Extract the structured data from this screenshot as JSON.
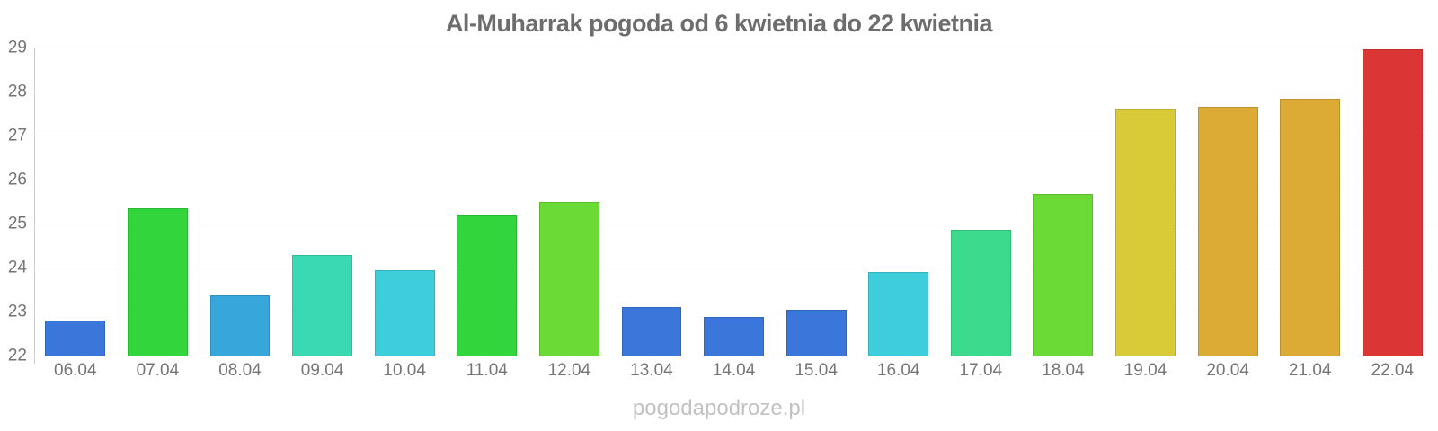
{
  "title": "Al-Muharrak pogoda od 6 kwietnia do 22 kwietnia",
  "watermark": "pogodapodroze.pl",
  "chart_data": {
    "type": "bar",
    "title": "Al-Muharrak pogoda od 6 kwietnia do 22 kwietnia",
    "categories": [
      "06.04",
      "07.04",
      "08.04",
      "09.04",
      "10.04",
      "11.04",
      "12.04",
      "13.04",
      "14.04",
      "15.04",
      "16.04",
      "17.04",
      "18.04",
      "19.04",
      "20.04",
      "21.04",
      "22.04"
    ],
    "values": [
      22.8,
      25.34,
      23.36,
      24.28,
      23.93,
      25.2,
      25.5,
      23.1,
      22.87,
      23.05,
      23.9,
      24.85,
      25.68,
      27.62,
      27.66,
      27.83,
      28.96
    ],
    "bar_colors": [
      "#3b76db",
      "#32d53b",
      "#36a6db",
      "#39dab3",
      "#3ecddb",
      "#32d53b",
      "#6bd936",
      "#3b76db",
      "#3b76db",
      "#3b76db",
      "#3ecddb",
      "#3cda8c",
      "#6bd936",
      "#d9ca38",
      "#dcab36",
      "#dcab36",
      "#db3535"
    ],
    "xlabel": "",
    "ylabel": "",
    "ylim": [
      22,
      29
    ],
    "yticks": [
      22,
      23,
      24,
      25,
      26,
      27,
      28,
      29
    ],
    "grid": true,
    "legend": false
  },
  "colors": {
    "title_text": "#6d6d6d",
    "tick_label": "#757575",
    "watermark": "#c2c2c2",
    "gridline": "#f0f0f0",
    "axis_line": "#c9c9c9",
    "background": "#ffffff"
  }
}
